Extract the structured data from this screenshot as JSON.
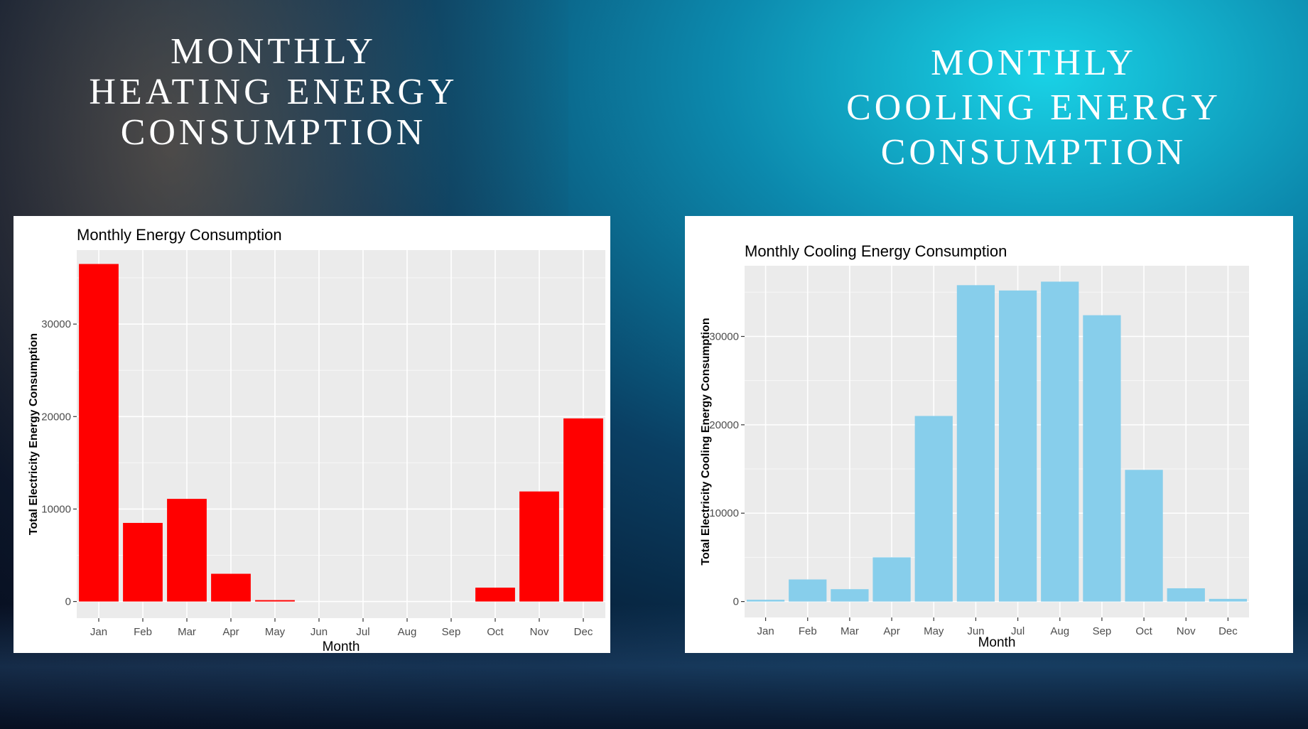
{
  "slide": {
    "heating_title_lines": [
      "MONTHLY",
      "HEATING ENERGY",
      "CONSUMPTION"
    ],
    "cooling_title_lines": [
      "MONTHLY",
      "COOLING ENERGY",
      "CONSUMPTION"
    ]
  },
  "colors": {
    "heating_bar": "#ff0000",
    "cooling_bar": "#87ceeb",
    "plot_background": "#ebebeb",
    "grid": "#ffffff"
  },
  "chart_data": [
    {
      "type": "bar",
      "title": "Monthly Energy Consumption",
      "xlabel": "Month",
      "ylabel": "Total Electricity  Energy Consumption",
      "categories": [
        "Jan",
        "Feb",
        "Mar",
        "Apr",
        "May",
        "Jun",
        "Jul",
        "Aug",
        "Sep",
        "Oct",
        "Nov",
        "Dec"
      ],
      "values": [
        36500,
        8500,
        11100,
        3000,
        150,
        0,
        0,
        0,
        0,
        1500,
        11900,
        19800
      ],
      "yticks": [
        "0",
        "10000",
        "20000",
        "30000"
      ],
      "ylim": [
        -1800,
        38000
      ],
      "grid": true,
      "legend": "none"
    },
    {
      "type": "bar",
      "title": "Monthly Cooling Energy Consumption",
      "xlabel": "Month",
      "ylabel": "Total Electricity Cooling Energy Consumption",
      "categories": [
        "Jan",
        "Feb",
        "Mar",
        "Apr",
        "May",
        "Jun",
        "Jul",
        "Aug",
        "Sep",
        "Oct",
        "Nov",
        "Dec"
      ],
      "values": [
        200,
        2500,
        1400,
        5000,
        21000,
        35800,
        35200,
        36200,
        32400,
        14900,
        1500,
        300
      ],
      "yticks": [
        "0",
        "10000",
        "20000",
        "30000"
      ],
      "ylim": [
        -1800,
        38000
      ],
      "grid": true,
      "legend": "none"
    }
  ]
}
